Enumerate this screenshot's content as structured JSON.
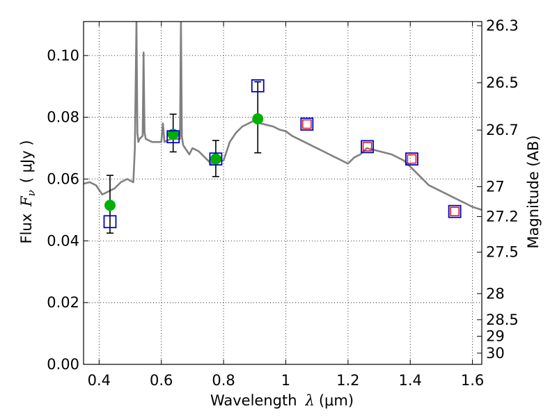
{
  "chart_data": {
    "type": "scatter",
    "xlabel": "Wavelength",
    "xlabel_symbol": "λ",
    "xlabel_unit": "(μm)",
    "ylabel": "Flux",
    "ylabel_symbol": "F",
    "ylabel_sub": "ν",
    "ylabel_unit": "( μJy )",
    "y2label": "Magnitude (AB)",
    "xlim": [
      0.35,
      1.63
    ],
    "ylim": [
      0.0,
      0.111
    ],
    "grid": true,
    "x_ticks": [
      0.4,
      0.6,
      0.8,
      1.0,
      1.2,
      1.4,
      1.6
    ],
    "x_tick_labels": [
      "0.4",
      "0.6",
      "0.8",
      "1",
      "1.2",
      "1.4",
      "1.6"
    ],
    "y_ticks": [
      0.0,
      0.02,
      0.04,
      0.06,
      0.08,
      0.1
    ],
    "y_tick_labels": [
      "0.00",
      "0.02",
      "0.04",
      "0.06",
      "0.08",
      "0.10"
    ],
    "mag_ticks": [
      26.3,
      26.5,
      26.7,
      27,
      27.2,
      27.5,
      28,
      28.5,
      29,
      30
    ],
    "mag_tick_labels": [
      "26.3",
      "26.5",
      "26.7",
      "27",
      "27.2",
      "27.5",
      "28",
      "28.5",
      "29",
      "30"
    ],
    "series": [
      {
        "kind": "line",
        "color": "#808080",
        "x": [
          0.35,
          0.37,
          0.39,
          0.41,
          0.43,
          0.45,
          0.47,
          0.49,
          0.51,
          0.515,
          0.52,
          0.523,
          0.526,
          0.53,
          0.54,
          0.543,
          0.546,
          0.55,
          0.57,
          0.6,
          0.605,
          0.61,
          0.63,
          0.65,
          0.66,
          0.663,
          0.666,
          0.67,
          0.69,
          0.7,
          0.72,
          0.74,
          0.76,
          0.78,
          0.8,
          0.82,
          0.84,
          0.86,
          0.88,
          0.9,
          0.92,
          0.94,
          0.96,
          0.98,
          1.0,
          1.02,
          1.04,
          1.06,
          1.08,
          1.1,
          1.12,
          1.14,
          1.16,
          1.18,
          1.2,
          1.22,
          1.24,
          1.26,
          1.28,
          1.3,
          1.32,
          1.34,
          1.36,
          1.38,
          1.4,
          1.42,
          1.44,
          1.46,
          1.48,
          1.5,
          1.52,
          1.54,
          1.56,
          1.58,
          1.6,
          1.63
        ],
        "y": [
          0.0585,
          0.059,
          0.058,
          0.055,
          0.056,
          0.057,
          0.059,
          0.06,
          0.059,
          0.07,
          0.111,
          0.075,
          0.072,
          0.073,
          0.074,
          0.101,
          0.075,
          0.073,
          0.072,
          0.072,
          0.078,
          0.072,
          0.073,
          0.073,
          0.073,
          0.111,
          0.074,
          0.071,
          0.068,
          0.07,
          0.069,
          0.067,
          0.065,
          0.066,
          0.066,
          0.072,
          0.075,
          0.077,
          0.078,
          0.079,
          0.078,
          0.0775,
          0.077,
          0.076,
          0.0755,
          0.074,
          0.073,
          0.072,
          0.071,
          0.07,
          0.069,
          0.068,
          0.067,
          0.066,
          0.065,
          0.067,
          0.068,
          0.07,
          0.0695,
          0.069,
          0.0685,
          0.068,
          0.067,
          0.066,
          0.064,
          0.062,
          0.06,
          0.058,
          0.057,
          0.056,
          0.055,
          0.054,
          0.053,
          0.052,
          0.051,
          0.05
        ]
      },
      {
        "kind": "points",
        "marker": "circle",
        "color": "#00b000",
        "x": [
          0.435,
          0.638,
          0.775,
          0.91
        ],
        "y": [
          0.0515,
          0.0745,
          0.0665,
          0.0795
        ],
        "yerr_low": [
          0.0425,
          0.0688,
          0.0608,
          0.0685
        ],
        "yerr_high": [
          0.0612,
          0.081,
          0.0725,
          0.0915
        ]
      },
      {
        "kind": "points",
        "marker": "square",
        "color": "#0000cc",
        "x": [
          0.435,
          0.638,
          0.775,
          0.91,
          1.068,
          1.262,
          1.405,
          1.543
        ],
        "y": [
          0.0462,
          0.0737,
          0.0665,
          0.0902,
          0.0778,
          0.0705,
          0.0665,
          0.0495
        ]
      },
      {
        "kind": "points",
        "marker": "square-small",
        "color": "#e00000",
        "x": [
          1.068,
          1.262,
          1.405,
          1.543
        ],
        "y": [
          0.0778,
          0.0705,
          0.0665,
          0.0495
        ]
      }
    ]
  }
}
